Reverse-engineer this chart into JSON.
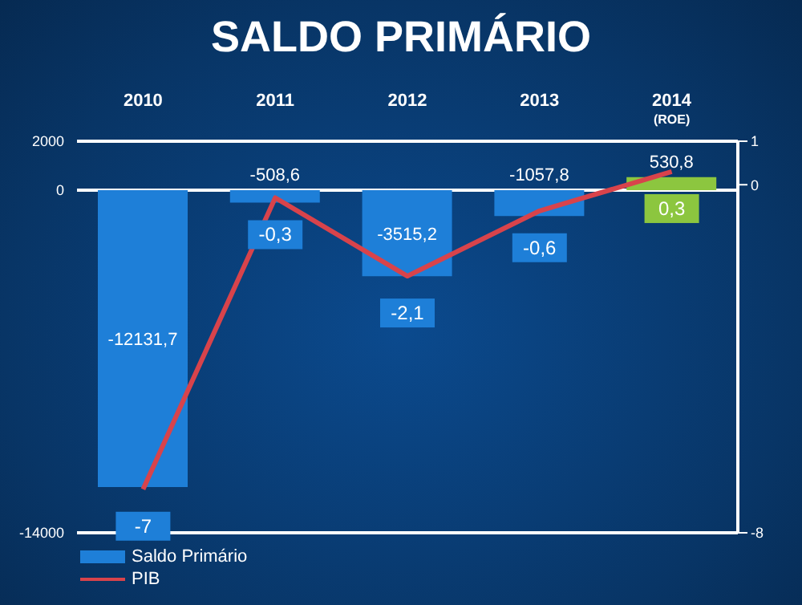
{
  "chart_data": {
    "type": "bar",
    "title": "SALDO PRIMÁRIO",
    "categories": [
      "2010",
      "2011",
      "2012",
      "2013",
      "2014\n(ROE)"
    ],
    "series": [
      {
        "name": "Saldo Primário",
        "colors": [
          "#1e7fd8",
          "#1e7fd8",
          "#1e7fd8",
          "#1e7fd8",
          "#8cc63f"
        ],
        "values": [
          -12131.7,
          -508.6,
          -3515.2,
          -1057.8,
          530.8
        ],
        "value_labels": [
          "-12131,7",
          "-508,6",
          "-3515,2",
          "-1057,8",
          "530,8"
        ]
      },
      {
        "name": "PIB",
        "type": "line",
        "axis": "y2",
        "color": "#d8434b",
        "values": [
          -7,
          -0.3,
          -2.1,
          -0.6,
          0.3
        ],
        "value_labels": [
          "-7",
          "-0,3",
          "-2,1",
          "-0,6",
          "0,3"
        ]
      }
    ],
    "ylim": [
      -14000,
      2000
    ],
    "yticks": [
      2000,
      0,
      -14000
    ],
    "y2lim": [
      -8,
      1
    ],
    "y2ticks": [
      1,
      0,
      -8
    ],
    "grid": "y",
    "legend": "bottom left",
    "marker": "none"
  }
}
